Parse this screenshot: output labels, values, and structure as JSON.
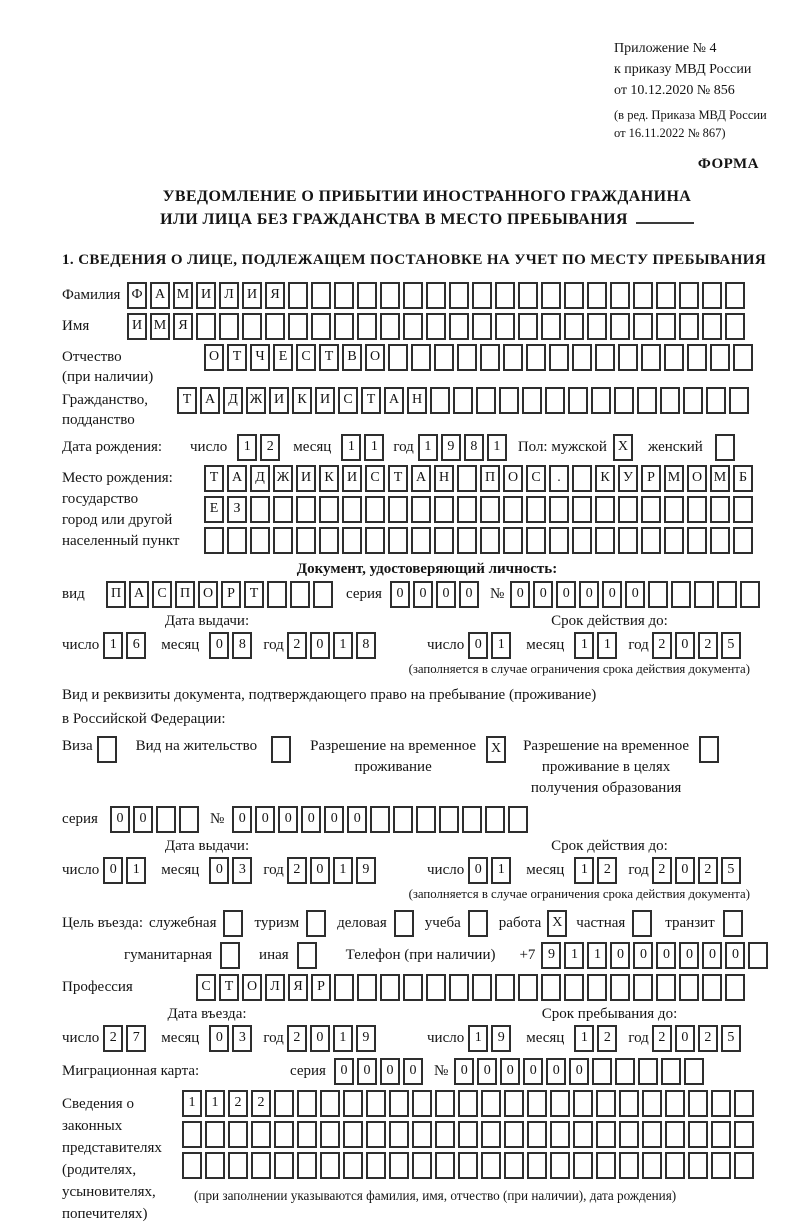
{
  "page": {
    "appendix": [
      "Приложение № 4",
      "к приказу МВД России",
      "от 10.12.2020 № 856"
    ],
    "amendment": [
      "(в ред. Приказа МВД России",
      "от 16.11.2022 № 867)"
    ],
    "form_label": "ФОРМА",
    "title_line1": "УВЕДОМЛЕНИЕ О ПРИБЫТИИ ИНОСТРАННОГО ГРАЖДАНИНА",
    "title_line2": "ИЛИ ЛИЦА БЕЗ ГРАЖДАНСТВА В МЕСТО ПРЕБЫВАНИЯ",
    "section1_heading": "1. СВЕДЕНИЯ О ЛИЦЕ, ПОДЛЕЖАЩЕМ ПОСТАНОВКЕ НА УЧЕТ ПО МЕСТУ ПРЕБЫВАНИЯ"
  },
  "labels": {
    "surname": "Фамилия",
    "name": "Имя",
    "patronymic_1": "Отчество",
    "patronymic_2": "(при наличии)",
    "citizenship_1": "Гражданство,",
    "citizenship_2": "подданство",
    "birth_date": "Дата рождения:",
    "day": "число",
    "month": "месяц",
    "year": "год",
    "gender": "Пол: мужской",
    "female": "женский",
    "birthplace_1": "Место рождения:",
    "birthplace_2": "государство",
    "birthplace_3": "город или другой",
    "birthplace_4": "населенный пункт",
    "identity_doc_heading": "Документ, удостоверяющий личность:",
    "doc_type": "вид",
    "series": "серия",
    "number": "№",
    "issue_date": "Дата выдачи:",
    "expiry_date": "Срок действия до:",
    "expiry_note": "(заполняется в случае ограничения срока действия документа)",
    "residence_doc_line1": "Вид и реквизиты документа, подтверждающего право на пребывание (проживание)",
    "residence_doc_line2": "в Российской Федерации:",
    "visa": "Виза",
    "residence_permit": "Вид на жительство",
    "temp_residence_1": "Разрешение на временное",
    "temp_residence_2": "проживание",
    "temp_residence_edu_1": "Разрешение на временное",
    "temp_residence_edu_2": "проживание в целях",
    "temp_residence_edu_3": "получения образования",
    "purpose": "Цель въезда:",
    "purpose_official": "служебная",
    "purpose_tourism": "туризм",
    "purpose_business": "деловая",
    "purpose_study": "учеба",
    "purpose_work": "работа",
    "purpose_private": "частная",
    "purpose_transit": "транзит",
    "purpose_humanitarian": "гуманитарная",
    "purpose_other": "иная",
    "phone": "Телефон (при наличии)",
    "phone_prefix": "+7",
    "profession": "Профессия",
    "entry_date": "Дата въезда:",
    "stay_until": "Срок пребывания до:",
    "migration_card": "Миграционная карта:",
    "reps_1": "Сведения о",
    "reps_2": "законных",
    "reps_3": "представителях",
    "reps_4": "(родителях,",
    "reps_5": "усыновителях,",
    "reps_6": "попечителях)",
    "reps_note": "(при заполнении указываются фамилия, имя, отчество (при наличии), дата рождения)"
  },
  "fields": {
    "surname": {
      "value": "ФАМИЛИЯ",
      "count": 27
    },
    "name": {
      "value": "ИМЯ",
      "count": 27
    },
    "patronymic": {
      "value": "ОТЧЕСТВО",
      "count": 24
    },
    "citizenship": {
      "value": "ТАДЖИКИСТАН",
      "count": 25
    },
    "birth_day": {
      "value": "12",
      "count": 2
    },
    "birth_month": {
      "value": "11",
      "count": 2
    },
    "birth_year": {
      "value": "1981",
      "count": 4
    },
    "gender_male": {
      "value": "X",
      "count": 1
    },
    "gender_female": {
      "value": "",
      "count": 1
    },
    "birthplace_row1": {
      "value": "ТАДЖИКИСТАН ПОС. КУРМОМБ",
      "count": 24
    },
    "birthplace_row2": {
      "value": "ЕЗ",
      "count": 24
    },
    "birthplace_row3": {
      "value": "",
      "count": 24
    },
    "doc_type": {
      "value": "ПАСПОРТ",
      "count": 10
    },
    "doc_series": {
      "value": "0000",
      "count": 4
    },
    "doc_number": {
      "value": "000000",
      "count": 11
    },
    "doc_issue_day": {
      "value": "16",
      "count": 2
    },
    "doc_issue_month": {
      "value": "08",
      "count": 2
    },
    "doc_issue_year": {
      "value": "2018",
      "count": 4
    },
    "doc_expiry_day": {
      "value": "01",
      "count": 2
    },
    "doc_expiry_month": {
      "value": "11",
      "count": 2
    },
    "doc_expiry_year": {
      "value": "2025",
      "count": 4
    },
    "visa_box": {
      "value": "",
      "count": 1
    },
    "residence_permit_box": {
      "value": "",
      "count": 1
    },
    "temp_residence_box": {
      "value": "X",
      "count": 1
    },
    "temp_residence_edu_box": {
      "value": "",
      "count": 1
    },
    "permit_series": {
      "value": "00",
      "count": 4
    },
    "permit_number": {
      "value": "000000",
      "count": 13
    },
    "permit_issue_day": {
      "value": "01",
      "count": 2
    },
    "permit_issue_month": {
      "value": "03",
      "count": 2
    },
    "permit_issue_year": {
      "value": "2019",
      "count": 4
    },
    "permit_expiry_day": {
      "value": "01",
      "count": 2
    },
    "permit_expiry_month": {
      "value": "12",
      "count": 2
    },
    "permit_expiry_year": {
      "value": "2025",
      "count": 4
    },
    "purpose_official_box": {
      "value": "",
      "count": 1
    },
    "purpose_tourism_box": {
      "value": "",
      "count": 1
    },
    "purpose_business_box": {
      "value": "",
      "count": 1
    },
    "purpose_study_box": {
      "value": "",
      "count": 1
    },
    "purpose_work_box": {
      "value": "X",
      "count": 1
    },
    "purpose_private_box": {
      "value": "",
      "count": 1
    },
    "purpose_transit_box": {
      "value": "",
      "count": 1
    },
    "purpose_humanitarian_box": {
      "value": "",
      "count": 1
    },
    "purpose_other_box": {
      "value": "",
      "count": 1
    },
    "phone": {
      "value": "911000000",
      "count": 10
    },
    "profession": {
      "value": "СТОЛЯР",
      "count": 24
    },
    "entry_day": {
      "value": "27",
      "count": 2
    },
    "entry_month": {
      "value": "03",
      "count": 2
    },
    "entry_year": {
      "value": "2019",
      "count": 4
    },
    "stay_day": {
      "value": "19",
      "count": 2
    },
    "stay_month": {
      "value": "12",
      "count": 2
    },
    "stay_year": {
      "value": "2025",
      "count": 4
    },
    "migration_series": {
      "value": "0000",
      "count": 4
    },
    "migration_number": {
      "value": "000000",
      "count": 11
    },
    "reps_row1": {
      "value": "1122",
      "count": 25
    },
    "reps_row2": {
      "value": "",
      "count": 25
    },
    "reps_row3": {
      "value": "",
      "count": 25
    }
  }
}
